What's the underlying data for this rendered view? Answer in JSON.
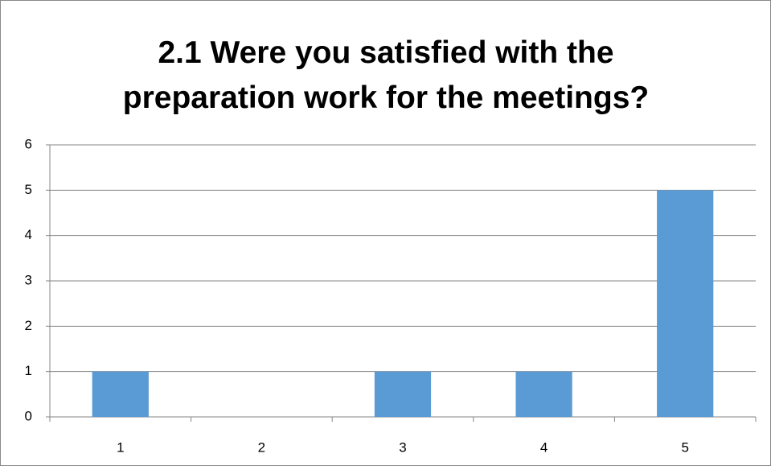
{
  "chart_data": {
    "type": "bar",
    "title": "2.1 Were you satisfied with the preparation work for the meetings?",
    "categories": [
      "1",
      "2",
      "3",
      "4",
      "5"
    ],
    "values": [
      1,
      0,
      1,
      1,
      5
    ],
    "color": "#5b9bd5",
    "ylim": [
      0,
      6
    ],
    "yticks": [
      0,
      1,
      2,
      3,
      4,
      5,
      6
    ],
    "grid": true
  }
}
